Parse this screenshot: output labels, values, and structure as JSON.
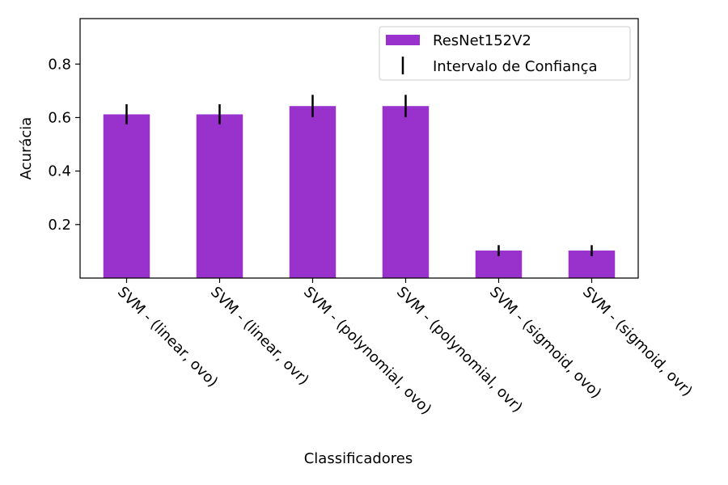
{
  "chart_data": {
    "type": "bar",
    "title": "",
    "xlabel": "Classificadores",
    "ylabel": "Acurácia",
    "categories": [
      "SVM - (linear, ovo)",
      "SVM - (linear, ovr)",
      "SVM - (polynomial, ovo)",
      "SVM - (polynomial, ovr)",
      "SVM - (sigmoid, ovo)",
      "SVM - (sigmoid, ovr)"
    ],
    "series": [
      {
        "name": "ResNet152V2",
        "color": "#9932cc",
        "values": [
          0.612,
          0.612,
          0.643,
          0.643,
          0.103,
          0.103
        ],
        "ci_low": [
          0.575,
          0.575,
          0.601,
          0.601,
          0.082,
          0.082
        ],
        "ci_high": [
          0.65,
          0.65,
          0.685,
          0.685,
          0.123,
          0.123
        ]
      }
    ],
    "error_label": "Intervalo de Confiança",
    "error_color": "#000000",
    "ylim": [
      0,
      0.97
    ],
    "yticks": [
      0.2,
      0.4,
      0.6,
      0.8
    ],
    "ytick_labels": [
      "0.2",
      "0.4",
      "0.6",
      "0.8"
    ],
    "legend_position": "top-right",
    "grid": false
  }
}
